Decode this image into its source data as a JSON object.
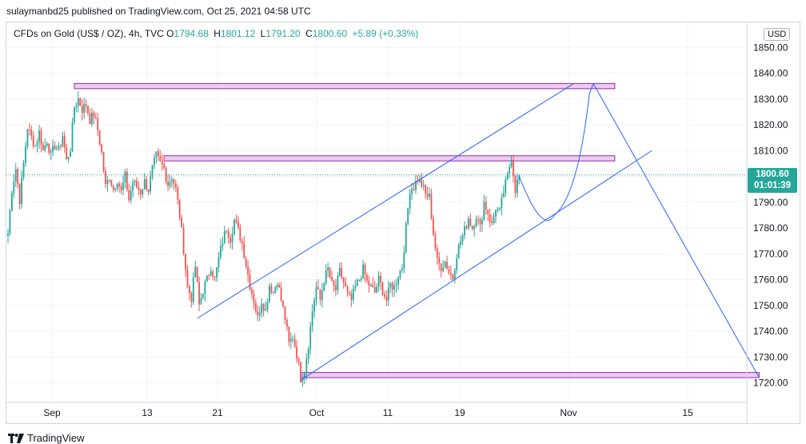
{
  "header": {
    "published_by": "sulaymanbd25 published on TradingView.com, Oct 25, 2021 04:58 UTC"
  },
  "legend": {
    "symbol": "CFDs on Gold (US$ / OZ), 4h, TVC",
    "open_key": "O",
    "open": "1794.68",
    "high_key": "H",
    "high": "1801.12",
    "low_key": "L",
    "low": "1791.20",
    "close_key": "C",
    "close": "1800.60",
    "change": "+5.89 (+0.33%)"
  },
  "currency_button": "USD",
  "price_label": {
    "price": "1800.60",
    "countdown": "01:01:39"
  },
  "brand": {
    "name": "TradingView",
    "icon": "tradingview-logo-icon"
  },
  "colors": {
    "up": "#26a69a",
    "down": "#ef5350",
    "drawing": "#2962ff",
    "zone_fill": "#e1bee7",
    "zone_border": "#9c27b0"
  },
  "chart_data": {
    "type": "candlestick",
    "timeframe": "4h",
    "ylim": [
      1715,
      1855
    ],
    "y_ticks": [
      1720,
      1730,
      1740,
      1750,
      1760,
      1770,
      1780,
      1790,
      1800,
      1810,
      1820,
      1830,
      1840,
      1850
    ],
    "x_tick_labels": [
      "Sep",
      "13",
      "21",
      "Oct",
      "11",
      "19",
      "Nov",
      "15"
    ],
    "current_price": 1800.6,
    "close_path": [
      [
        0,
        1778
      ],
      [
        2,
        1795
      ],
      [
        4,
        1803
      ],
      [
        6,
        1791
      ],
      [
        8,
        1805
      ],
      [
        10,
        1819
      ],
      [
        12,
        1815
      ],
      [
        14,
        1812
      ],
      [
        16,
        1817
      ],
      [
        18,
        1810
      ],
      [
        20,
        1814
      ],
      [
        22,
        1808
      ],
      [
        24,
        1812
      ],
      [
        26,
        1810
      ],
      [
        28,
        1816
      ],
      [
        30,
        1806
      ],
      [
        32,
        1811
      ],
      [
        34,
        1827
      ],
      [
        36,
        1830
      ],
      [
        38,
        1826
      ],
      [
        40,
        1828
      ],
      [
        42,
        1822
      ],
      [
        44,
        1824
      ],
      [
        46,
        1818
      ],
      [
        48,
        1809
      ],
      [
        50,
        1796
      ],
      [
        52,
        1800
      ],
      [
        54,
        1795
      ],
      [
        56,
        1799
      ],
      [
        58,
        1794
      ],
      [
        60,
        1800
      ],
      [
        62,
        1791
      ],
      [
        64,
        1798
      ],
      [
        66,
        1796
      ],
      [
        68,
        1794
      ],
      [
        70,
        1798
      ],
      [
        72,
        1795
      ],
      [
        74,
        1803
      ],
      [
        76,
        1808
      ],
      [
        78,
        1805
      ],
      [
        80,
        1803
      ],
      [
        82,
        1797
      ],
      [
        84,
        1800
      ],
      [
        86,
        1795
      ],
      [
        88,
        1785
      ],
      [
        90,
        1772
      ],
      [
        92,
        1757
      ],
      [
        94,
        1753
      ],
      [
        96,
        1765
      ],
      [
        98,
        1750
      ],
      [
        100,
        1756
      ],
      [
        102,
        1760
      ],
      [
        104,
        1765
      ],
      [
        106,
        1760
      ],
      [
        108,
        1768
      ],
      [
        110,
        1775
      ],
      [
        112,
        1780
      ],
      [
        114,
        1776
      ],
      [
        116,
        1783
      ],
      [
        118,
        1779
      ],
      [
        120,
        1774
      ],
      [
        122,
        1766
      ],
      [
        124,
        1758
      ],
      [
        126,
        1752
      ],
      [
        128,
        1745
      ],
      [
        130,
        1752
      ],
      [
        132,
        1748
      ],
      [
        134,
        1758
      ],
      [
        136,
        1755
      ],
      [
        138,
        1760
      ],
      [
        140,
        1752
      ],
      [
        142,
        1745
      ],
      [
        144,
        1735
      ],
      [
        146,
        1738
      ],
      [
        148,
        1731
      ],
      [
        150,
        1722
      ],
      [
        152,
        1725
      ],
      [
        154,
        1735
      ],
      [
        156,
        1748
      ],
      [
        158,
        1757
      ],
      [
        160,
        1752
      ],
      [
        162,
        1760
      ],
      [
        164,
        1764
      ],
      [
        166,
        1758
      ],
      [
        168,
        1756
      ],
      [
        170,
        1763
      ],
      [
        172,
        1759
      ],
      [
        174,
        1754
      ],
      [
        176,
        1752
      ],
      [
        178,
        1757
      ],
      [
        180,
        1760
      ],
      [
        182,
        1764
      ],
      [
        184,
        1759
      ],
      [
        186,
        1757
      ],
      [
        188,
        1755
      ],
      [
        190,
        1760
      ],
      [
        192,
        1756
      ],
      [
        194,
        1752
      ],
      [
        196,
        1758
      ],
      [
        198,
        1757
      ],
      [
        200,
        1762
      ],
      [
        202,
        1765
      ],
      [
        204,
        1780
      ],
      [
        206,
        1795
      ],
      [
        208,
        1796
      ],
      [
        210,
        1799
      ],
      [
        212,
        1797
      ],
      [
        214,
        1793
      ],
      [
        216,
        1792
      ],
      [
        218,
        1778
      ],
      [
        220,
        1767
      ],
      [
        222,
        1765
      ],
      [
        224,
        1767
      ],
      [
        226,
        1763
      ],
      [
        228,
        1761
      ],
      [
        230,
        1770
      ],
      [
        232,
        1775
      ],
      [
        234,
        1779
      ],
      [
        236,
        1784
      ],
      [
        238,
        1780
      ],
      [
        240,
        1785
      ],
      [
        242,
        1780
      ],
      [
        244,
        1790
      ],
      [
        246,
        1786
      ],
      [
        248,
        1781
      ],
      [
        250,
        1788
      ],
      [
        252,
        1786
      ],
      [
        254,
        1794
      ],
      [
        256,
        1800
      ],
      [
        258,
        1808
      ],
      [
        260,
        1795
      ],
      [
        262,
        1800.6
      ]
    ],
    "drawings": {
      "resistance_zone_top": {
        "x": [
          34,
          311
        ],
        "y": [
          1834,
          1836
        ]
      },
      "resistance_zone_middle": {
        "x": [
          80,
          311
        ],
        "y": [
          1806,
          1808
        ]
      },
      "support_zone": {
        "x": [
          150,
          385
        ],
        "y": [
          1722,
          1724
        ]
      },
      "channel_upper": {
        "x": [
          97,
          290
        ],
        "y": [
          1745,
          1836
        ]
      },
      "channel_lower": {
        "x": [
          150,
          330
        ],
        "y": [
          1721,
          1810
        ]
      },
      "projection_path": [
        [
          262,
          1800
        ],
        [
          280,
          1785
        ],
        [
          292,
          1800
        ],
        [
          298,
          1832
        ],
        [
          300,
          1836
        ],
        [
          385,
          1722
        ]
      ]
    }
  }
}
